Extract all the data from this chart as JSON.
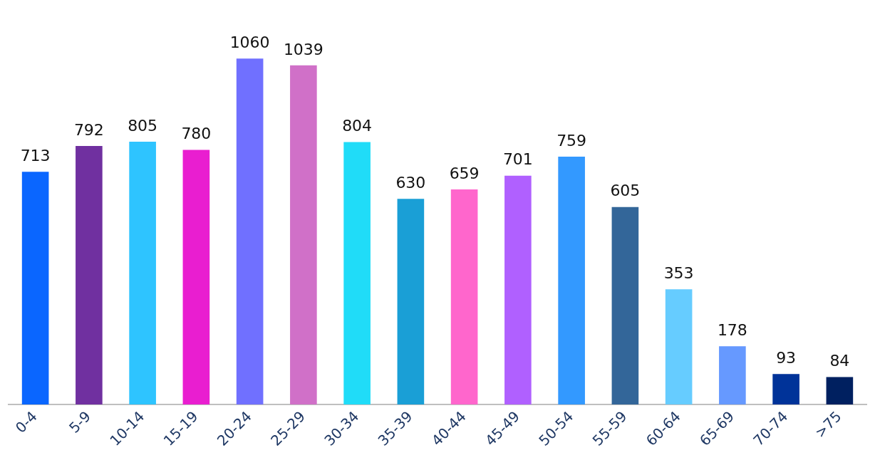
{
  "chart_data": {
    "type": "bar",
    "categories": [
      "0-4",
      "5-9",
      "10-14",
      "15-19",
      "20-24",
      "25-29",
      "30-34",
      "35-39",
      "40-44",
      "45-49",
      "50-54",
      "55-59",
      "60-64",
      "65-69",
      "70-74",
      ">75"
    ],
    "values": [
      713,
      792,
      805,
      780,
      1060,
      1039,
      804,
      630,
      659,
      701,
      759,
      605,
      353,
      178,
      93,
      84
    ],
    "colors": [
      "#0a66ff",
      "#7030a0",
      "#2ec4ff",
      "#e91ed0",
      "#7070ff",
      "#d070c8",
      "#20dcf8",
      "#1a9fd6",
      "#ff66cc",
      "#b060ff",
      "#3399ff",
      "#336699",
      "#66ccff",
      "#6699ff",
      "#003399",
      "#002060"
    ],
    "data_labels": true,
    "grid": false,
    "legend": false,
    "tick_labels": "x"
  }
}
